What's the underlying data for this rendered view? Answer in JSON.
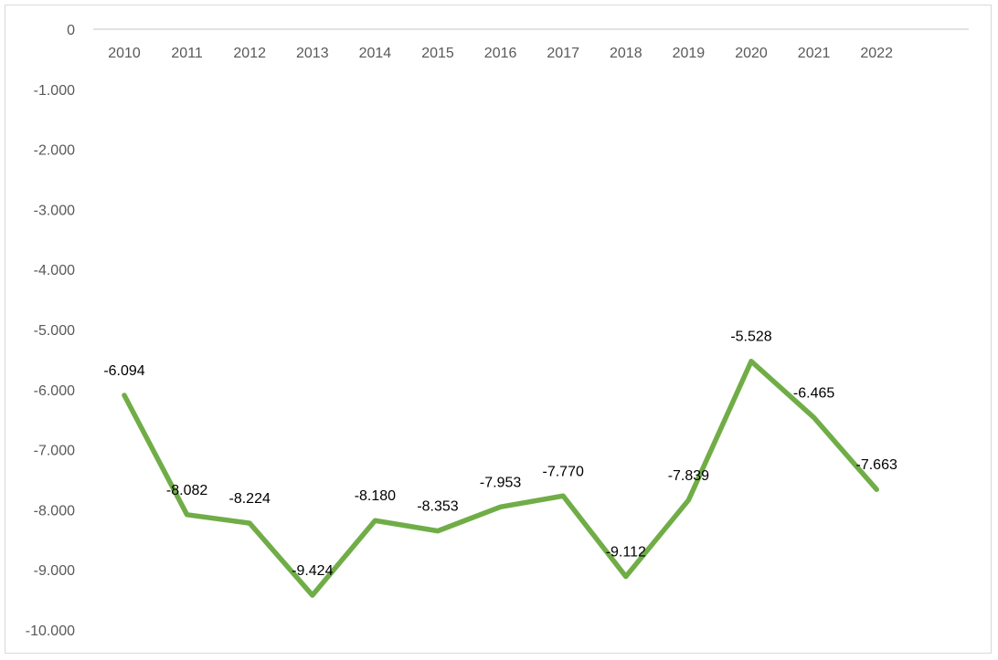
{
  "chart_data": {
    "type": "line",
    "title": "",
    "xlabel": "",
    "ylabel": "",
    "categories": [
      "2010",
      "2011",
      "2012",
      "2013",
      "2014",
      "2015",
      "2016",
      "2017",
      "2018",
      "2019",
      "2020",
      "2021",
      "2022"
    ],
    "series": [
      {
        "values": [
          -6094,
          -8082,
          -8224,
          -9424,
          -8180,
          -8353,
          -7953,
          -7770,
          -9112,
          -7839,
          -5528,
          -6465,
          -7663
        ],
        "labels": [
          "-6.094",
          "-8.082",
          "-8.224",
          "-9.424",
          "-8.180",
          "-8.353",
          "-7.953",
          "-7.770",
          "-9.112",
          "-7.839",
          "-5.528",
          "-6.465",
          "-7.663"
        ],
        "color": "#70ad47"
      }
    ],
    "ylim": [
      -10000,
      0
    ],
    "yticks": [
      0,
      -1000,
      -2000,
      -3000,
      -4000,
      -5000,
      -6000,
      -7000,
      -8000,
      -9000,
      -10000
    ],
    "ytick_labels": [
      "0",
      "-1.000",
      "-2.000",
      "-3.000",
      "-4.000",
      "-5.000",
      "-6.000",
      "-7.000",
      "-8.000",
      "-9.000",
      "-10.000"
    ],
    "grid": false,
    "legend": "none",
    "axis_color": "#d9d9d9"
  }
}
